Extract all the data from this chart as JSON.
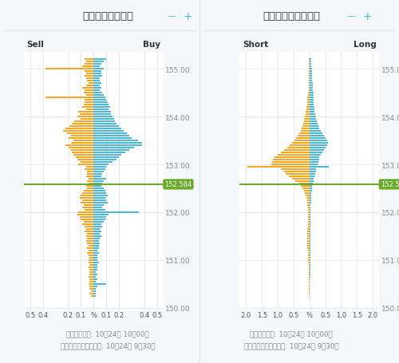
{
  "title_left": "オープンオーダー",
  "title_right": "オープンポジション",
  "sell_label": "Sell",
  "buy_label": "Buy",
  "short_label": "Short",
  "long_label": "Long",
  "current_price": 152.584,
  "current_price_label": "152.584",
  "y_min": 149.95,
  "y_max": 155.35,
  "bg_color": "#f5f7fa",
  "plot_bg_color": "#ffffff",
  "bar_color_sell": "#f5a623",
  "bar_color_buy": "#4db8d4",
  "bar_color_short": "#f5a623",
  "bar_color_long": "#4db8d4",
  "grid_color": "#dce3ec",
  "price_line_color": "#6aaa2a",
  "price_label_bg": "#6aaa2a",
  "price_label_color": "#ffffff",
  "footer_text1": "最新更新時間: 10月24日 10時00分",
  "footer_text2": "スナップショット時間: 10月24日 9時30分",
  "header_line_color": "#4db8d4",
  "header_plus_color": "#4db8d4",
  "yticks": [
    150.0,
    151.0,
    152.0,
    153.0,
    154.0,
    155.0
  ],
  "order_prices": [
    155.2,
    155.15,
    155.1,
    155.05,
    155.0,
    154.95,
    154.9,
    154.85,
    154.8,
    154.75,
    154.7,
    154.65,
    154.6,
    154.55,
    154.5,
    154.45,
    154.4,
    154.35,
    154.3,
    154.25,
    154.2,
    154.15,
    154.1,
    154.05,
    154.0,
    153.95,
    153.9,
    153.85,
    153.8,
    153.75,
    153.7,
    153.65,
    153.6,
    153.55,
    153.5,
    153.45,
    153.4,
    153.35,
    153.3,
    153.25,
    153.2,
    153.15,
    153.1,
    153.05,
    153.0,
    152.95,
    152.9,
    152.85,
    152.8,
    152.75,
    152.7,
    152.65,
    152.6,
    152.55,
    152.5,
    152.45,
    152.4,
    152.35,
    152.3,
    152.25,
    152.2,
    152.15,
    152.1,
    152.05,
    152.0,
    151.95,
    151.9,
    151.85,
    151.8,
    151.75,
    151.7,
    151.65,
    151.6,
    151.55,
    151.5,
    151.45,
    151.4,
    151.35,
    151.3,
    151.25,
    151.2,
    151.15,
    151.1,
    151.05,
    151.0,
    150.95,
    150.9,
    150.85,
    150.8,
    150.75,
    150.7,
    150.65,
    150.6,
    150.55,
    150.5,
    150.45,
    150.4,
    150.35,
    150.3,
    150.25
  ],
  "order_sell": [
    0.07,
    0.06,
    0.07,
    0.09,
    0.38,
    0.07,
    0.06,
    0.07,
    0.06,
    0.05,
    0.04,
    0.06,
    0.09,
    0.07,
    0.08,
    0.06,
    0.38,
    0.07,
    0.07,
    0.08,
    0.09,
    0.06,
    0.12,
    0.11,
    0.13,
    0.1,
    0.15,
    0.17,
    0.19,
    0.22,
    0.24,
    0.21,
    0.18,
    0.2,
    0.16,
    0.18,
    0.22,
    0.2,
    0.18,
    0.17,
    0.16,
    0.14,
    0.13,
    0.1,
    0.12,
    0.06,
    0.07,
    0.05,
    0.05,
    0.06,
    0.04,
    0.05,
    0.04,
    0.06,
    0.05,
    0.08,
    0.09,
    0.1,
    0.11,
    0.09,
    0.1,
    0.08,
    0.09,
    0.07,
    0.12,
    0.13,
    0.11,
    0.1,
    0.08,
    0.09,
    0.07,
    0.06,
    0.07,
    0.05,
    0.06,
    0.05,
    0.06,
    0.05,
    0.04,
    0.05,
    0.04,
    0.05,
    0.04,
    0.03,
    0.04,
    0.04,
    0.03,
    0.04,
    0.03,
    0.03,
    0.03,
    0.04,
    0.03,
    0.03,
    0.04,
    0.03,
    0.03,
    0.02,
    0.03,
    0.02
  ],
  "order_buy": [
    0.1,
    0.08,
    0.06,
    0.05,
    0.08,
    0.06,
    0.06,
    0.07,
    0.05,
    0.05,
    0.06,
    0.05,
    0.06,
    0.05,
    0.07,
    0.08,
    0.09,
    0.1,
    0.11,
    0.12,
    0.13,
    0.12,
    0.14,
    0.14,
    0.15,
    0.16,
    0.17,
    0.18,
    0.2,
    0.22,
    0.24,
    0.26,
    0.28,
    0.3,
    0.35,
    0.38,
    0.38,
    0.32,
    0.28,
    0.25,
    0.22,
    0.2,
    0.18,
    0.15,
    0.12,
    0.1,
    0.09,
    0.08,
    0.07,
    0.06,
    0.1,
    0.08,
    0.07,
    0.06,
    0.08,
    0.09,
    0.1,
    0.11,
    0.09,
    0.1,
    0.11,
    0.08,
    0.07,
    0.09,
    0.36,
    0.12,
    0.1,
    0.09,
    0.08,
    0.06,
    0.07,
    0.05,
    0.06,
    0.05,
    0.06,
    0.05,
    0.04,
    0.05,
    0.04,
    0.04,
    0.03,
    0.04,
    0.03,
    0.03,
    0.03,
    0.04,
    0.03,
    0.03,
    0.03,
    0.02,
    0.03,
    0.02,
    0.03,
    0.02,
    0.1,
    0.03,
    0.02,
    0.02,
    0.02,
    0.02
  ],
  "position_prices": [
    155.2,
    155.15,
    155.1,
    155.05,
    155.0,
    154.95,
    154.9,
    154.85,
    154.8,
    154.75,
    154.7,
    154.65,
    154.6,
    154.55,
    154.5,
    154.45,
    154.4,
    154.35,
    154.3,
    154.25,
    154.2,
    154.15,
    154.1,
    154.05,
    154.0,
    153.95,
    153.9,
    153.85,
    153.8,
    153.75,
    153.7,
    153.65,
    153.6,
    153.55,
    153.5,
    153.45,
    153.4,
    153.35,
    153.3,
    153.25,
    153.2,
    153.15,
    153.1,
    153.05,
    153.0,
    152.95,
    152.9,
    152.85,
    152.8,
    152.75,
    152.7,
    152.65,
    152.6,
    152.55,
    152.5,
    152.45,
    152.4,
    152.35,
    152.3,
    152.25,
    152.2,
    152.15,
    152.1,
    152.05,
    152.0,
    151.95,
    151.9,
    151.85,
    151.8,
    151.75,
    151.7,
    151.65,
    151.6,
    151.55,
    151.5,
    151.45,
    151.4,
    151.35,
    151.3,
    151.25,
    151.2,
    151.15,
    151.1,
    151.05,
    151.0,
    150.95,
    150.9,
    150.85,
    150.8,
    150.75,
    150.7,
    150.65,
    150.6,
    150.55,
    150.5,
    150.45,
    150.4,
    150.35,
    150.3,
    150.25
  ],
  "position_short": [
    0.02,
    0.02,
    0.03,
    0.03,
    0.03,
    0.03,
    0.03,
    0.03,
    0.03,
    0.03,
    0.03,
    0.03,
    0.03,
    0.02,
    0.04,
    0.05,
    0.06,
    0.06,
    0.07,
    0.08,
    0.1,
    0.1,
    0.12,
    0.13,
    0.15,
    0.16,
    0.17,
    0.2,
    0.22,
    0.25,
    0.28,
    0.32,
    0.38,
    0.42,
    0.48,
    0.55,
    0.62,
    0.7,
    0.8,
    0.9,
    1.0,
    1.1,
    1.15,
    1.18,
    1.2,
    1.95,
    0.9,
    0.8,
    0.75,
    0.65,
    0.55,
    0.45,
    0.35,
    0.28,
    0.22,
    0.18,
    0.15,
    0.12,
    0.1,
    0.08,
    0.07,
    0.06,
    0.05,
    0.05,
    0.04,
    0.04,
    0.04,
    0.04,
    0.04,
    0.05,
    0.05,
    0.06,
    0.06,
    0.07,
    0.07,
    0.07,
    0.07,
    0.07,
    0.06,
    0.06,
    0.05,
    0.05,
    0.05,
    0.04,
    0.04,
    0.04,
    0.03,
    0.03,
    0.03,
    0.03,
    0.03,
    0.03,
    0.02,
    0.02,
    0.02,
    0.02,
    0.02,
    0.02,
    0.01,
    0.01
  ],
  "position_long": [
    0.05,
    0.05,
    0.06,
    0.06,
    0.07,
    0.07,
    0.08,
    0.08,
    0.09,
    0.09,
    0.1,
    0.1,
    0.11,
    0.11,
    0.12,
    0.12,
    0.13,
    0.13,
    0.14,
    0.14,
    0.15,
    0.16,
    0.17,
    0.18,
    0.2,
    0.22,
    0.24,
    0.26,
    0.28,
    0.3,
    0.35,
    0.4,
    0.45,
    0.5,
    0.55,
    0.58,
    0.55,
    0.5,
    0.45,
    0.4,
    0.35,
    0.32,
    0.3,
    0.28,
    0.25,
    0.6,
    0.22,
    0.2,
    0.18,
    0.16,
    0.14,
    0.12,
    0.1,
    0.09,
    0.08,
    0.07,
    0.06,
    0.06,
    0.05,
    0.05,
    0.05,
    0.04,
    0.04,
    0.04,
    0.03,
    0.04,
    0.04,
    0.04,
    0.04,
    0.04,
    0.04,
    0.04,
    0.04,
    0.04,
    0.04,
    0.04,
    0.03,
    0.03,
    0.03,
    0.03,
    0.03,
    0.03,
    0.03,
    0.02,
    0.02,
    0.02,
    0.02,
    0.02,
    0.02,
    0.02,
    0.02,
    0.02,
    0.01,
    0.01,
    0.01,
    0.01,
    0.01,
    0.01,
    0.01,
    0.01
  ]
}
